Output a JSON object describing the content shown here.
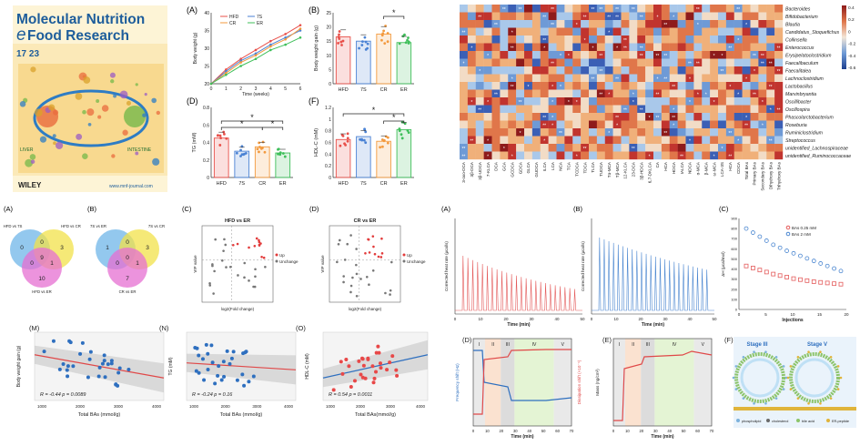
{
  "cover": {
    "line1": "Molecular Nutrition",
    "line2a": "e",
    "line2b": "Food Research",
    "issue": "17 23",
    "publisher": "WILEY",
    "url": "www.mnf-journal.com",
    "left_label": "LIVER",
    "right_label": "INTESTINE"
  },
  "panels": {
    "A_label": "(A)",
    "B_label": "(B)",
    "D_label": "(D)",
    "F_label": "(F)",
    "weight_ylabel": "Body weight (g)",
    "weight_xlabel": "Time (weeks)",
    "gain_ylabel": "Body weight gain (g)",
    "tg_ylabel": "TG (mM)",
    "hdl_ylabel": "HDL-C (mM)",
    "star": "*"
  },
  "groups": [
    "HFD",
    "7S",
    "CR",
    "ER"
  ],
  "group_colors": [
    "#e8504a",
    "#4a82d4",
    "#f39a3e",
    "#3fbf5a"
  ],
  "chart_data": [
    {
      "type": "line",
      "x": [
        0,
        1,
        2,
        3,
        4,
        5,
        6
      ],
      "series": [
        {
          "name": "HFD",
          "values": [
            20,
            24,
            27,
            29.5,
            32,
            34,
            36.5
          ]
        },
        {
          "name": "7S",
          "values": [
            20,
            23.5,
            26.5,
            28.5,
            31,
            33,
            35
          ]
        },
        {
          "name": "CR",
          "values": [
            20,
            23,
            26,
            28,
            30.5,
            32.5,
            35.5
          ]
        },
        {
          "name": "ER",
          "values": [
            20,
            22.5,
            25,
            27,
            29.5,
            31,
            33
          ]
        }
      ],
      "xlabel": "Time (weeks)",
      "ylabel": "Body weight (g)",
      "xticks": [
        0,
        1,
        2,
        3,
        4,
        5,
        6
      ],
      "yticks": [
        20,
        25,
        30,
        35,
        40
      ],
      "ylim": [
        20,
        40
      ]
    },
    {
      "type": "bar",
      "categories": [
        "HFD",
        "7S",
        "CR",
        "ER"
      ],
      "values": [
        16.5,
        15,
        17.5,
        14.5
      ],
      "ylabel": "Body weight gain (g)",
      "yticks": [
        0,
        5,
        10,
        15,
        20,
        25
      ],
      "ylim": [
        0,
        25
      ]
    },
    {
      "type": "bar",
      "categories": [
        "HFD",
        "7S",
        "CR",
        "ER"
      ],
      "values": [
        0.45,
        0.3,
        0.35,
        0.28
      ],
      "ylabel": "TG (mM)",
      "yticks": [
        0.0,
        0.2,
        0.4,
        0.6,
        0.8
      ],
      "ylim": [
        0,
        0.8
      ]
    },
    {
      "type": "bar",
      "categories": [
        "HFD",
        "7S",
        "CR",
        "ER"
      ],
      "values": [
        0.65,
        0.7,
        0.62,
        0.82
      ],
      "ylabel": "HDL-C (mM)",
      "yticks": [
        0.0,
        0.2,
        0.4,
        0.6,
        0.8,
        1.0,
        1.2
      ],
      "ylim": [
        0,
        1.2
      ]
    },
    {
      "type": "heatmap",
      "rows": [
        "Bacteroides",
        "Bifidobacterium",
        "Blautia",
        "Candidatus_Stoquefichus",
        "Collinsella",
        "Enterococcus",
        "Erysipelatoclostridium",
        "Faecalibaculum",
        "Faecalitalea",
        "Lachnoclostridium",
        "Lactobacillus",
        "Marvinbryantia",
        "Oscillibacter",
        "Oscillospira",
        "Phascolarctobacterium",
        "Roseburia",
        "Ruminiclostridium",
        "Streptococcus",
        "unidentified_Lachnospiraceae",
        "unidentified_Ruminococcaceae"
      ],
      "columns": [
        "3-oxo-DCA",
        "3β-DCA",
        "3β-UDCA",
        "7-KLCA",
        "DCA",
        "GCA",
        "GCDCA",
        "GDCA",
        "GLCA",
        "GUDCA",
        "ILCA",
        "LCA",
        "NCA",
        "TCA",
        "TCDCA",
        "TDCA",
        "TLCA",
        "TUDCA",
        "Tα-MCA",
        "Tβ-MCA",
        "12-KLCA",
        "23-DCA",
        "3β-HDCA",
        "6,7-DKLCA",
        "CA",
        "HCA",
        "HDCA",
        "IALCA",
        "NDCA",
        "α-MCA",
        "β-MCA",
        "ω-MCA",
        "LCA-3S",
        "HCA",
        "CDCA",
        "Total BAs",
        "Primary BAs",
        "Secondary BAs",
        "Dihydroxy BAs",
        "Trihydroxy BAs"
      ],
      "colorbar_ticks": [
        "0.4",
        "0.2",
        "0",
        "-0.2",
        "-0.4",
        "-0.6"
      ]
    },
    {
      "type": "table",
      "title": "Venn diagrams",
      "venn1": {
        "sets": [
          "HFD vs 7S",
          "HFD vs CR",
          "HFD vs ER"
        ],
        "values": {
          "a": 0,
          "b": 3,
          "c": 10,
          "ab": 0,
          "ac": 0,
          "bc": 1,
          "abc": 9
        }
      },
      "venn2": {
        "sets": [
          "7S vs ER",
          "7S vs CR",
          "CR vs ER"
        ],
        "values": {
          "a": 1,
          "b": 3,
          "c": 7,
          "ab": 0,
          "ac": 0,
          "bc": 1,
          "abc": 0
        }
      }
    },
    {
      "type": "scatter",
      "titles": [
        "HFD vs ER",
        "CR vs ER"
      ],
      "xlabel": "log2(Fold change)",
      "ylabel": "VIP value",
      "legend": [
        "Up",
        "Unchange"
      ]
    },
    {
      "type": "line",
      "titles": [
        "Corrected heat rate (μcal/s)"
      ],
      "xlabel": "Time (min)",
      "xticks": [
        0,
        10,
        20,
        30,
        40,
        50
      ],
      "legend_c": [
        "BAs 0.25 mM",
        "BAs 2 mM"
      ],
      "c_xlabel": "Injections",
      "c_ylabel": "ΔH (μcal/mol)",
      "c_series": [
        {
          "name": "BAs 0.25 mM",
          "values": [
            430,
            410,
            390,
            370,
            350,
            335,
            320,
            305,
            295,
            285,
            275,
            268,
            262,
            255,
            250
          ]
        },
        {
          "name": "BAs 2 mM",
          "values": [
            800,
            760,
            720,
            680,
            640,
            610,
            580,
            555,
            530,
            505,
            480,
            455,
            430,
            405,
            380
          ]
        }
      ]
    },
    {
      "type": "scatter",
      "panels": [
        {
          "label": "(M)",
          "ylabel": "Body weight gain (g)",
          "xlabel": "Total BAs (mmol/g)",
          "stat": "R = -0.44  p = 0.0089",
          "color": "#2e6fbf"
        },
        {
          "label": "(N)",
          "ylabel": "TG (mM)",
          "xlabel": "Total BAs (mmol/g)",
          "stat": "R = -0.24  p = 0.16",
          "color": "#2e6fbf"
        },
        {
          "label": "(O)",
          "ylabel": "HDL-C (mM)",
          "xlabel": "Total BAs(mmol/g)",
          "stat": "R = 0.54  p = 0.0011",
          "color": "#e84848"
        }
      ]
    },
    {
      "type": "line",
      "panels": [
        {
          "label": "(D)",
          "ylabel": "Frequency shift (Hz)",
          "ylabel2": "Dissipation shift (×10⁻⁶)",
          "xlabel": "Time (min)"
        },
        {
          "label": "(E)",
          "ylabel": "Mass (ng/cm²)",
          "xlabel": "Time (min)"
        },
        {
          "label": "(F)",
          "stage3": "Stage III",
          "stage5": "Stage V",
          "legend": [
            "phospholipid",
            "cholesterol",
            "bile acid",
            "ER-peptide"
          ]
        }
      ],
      "stages": [
        "I",
        "II",
        "III",
        "IV",
        "V"
      ]
    }
  ],
  "sub_labels": {
    "venn_a": "(A)",
    "venn_b": "(B)",
    "volc_c": "(C)",
    "volc_d": "(D)",
    "itc_a": "(A)",
    "itc_b": "(B)",
    "itc_c": "(C)"
  }
}
